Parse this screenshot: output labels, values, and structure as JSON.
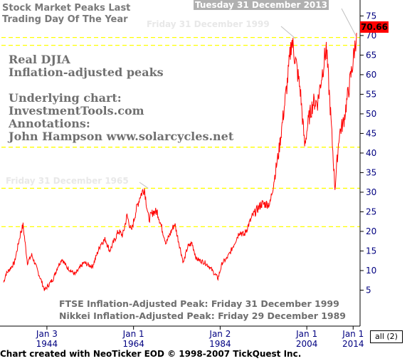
{
  "title_lines": [
    "Stock Market Peaks Last",
    "Trading Day Of The Year"
  ],
  "info_lines": [
    "Real DJIA",
    "Inflation-adjusted peaks",
    "",
    "Underlying chart:",
    "InvestmentTools.com",
    "Annotations:",
    "John Hampson  www.solarcycles.net"
  ],
  "annotations": {
    "peak_2013": "Tuesday 31 December 2013",
    "peak_1999": "Friday 31 December 1999",
    "peak_1965": "Friday 31 December 1965"
  },
  "bottom_notes": [
    "FTSE Inflation-Adjusted Peak: Friday 31 December 1999",
    "Nikkei Inflation-Adjusted Peak: Friday 29 December 1989"
  ],
  "last_price": "70.66",
  "all_button": "all (2)",
  "footer": "Chart created with NeoTicker EOD © 1998-2007 TickQuest Inc.",
  "colors": {
    "series": "#ff0000",
    "peak_lines": "#ffff00",
    "axis_text": "#000080",
    "label_bg": "#ff0000"
  },
  "chart_data": {
    "type": "line",
    "title": "Stock Market Peaks Last Trading Day Of The Year",
    "xlabel": "",
    "ylabel": "",
    "ylim": [
      0,
      78
    ],
    "y_ticks": [
      5,
      10,
      15,
      20,
      25,
      30,
      35,
      40,
      45,
      50,
      55,
      60,
      65,
      70,
      75
    ],
    "x_ticks": [
      {
        "label": "Jan 3",
        "year": "1944"
      },
      {
        "label": "Jan 1",
        "year": "1964"
      },
      {
        "label": "Jan 2",
        "year": "1984"
      },
      {
        "label": "Jan 1",
        "year": "2004"
      },
      {
        "label": "Jan 1",
        "year": "2014"
      }
    ],
    "horizontal_peak_lines": [
      21.2,
      31,
      41.5,
      67.5,
      69.5
    ],
    "series": [
      {
        "name": "Real DJIA",
        "x": [
          1932.5,
          1933,
          1935,
          1936.5,
          1937,
          1938,
          1939,
          1942,
          1944,
          1945,
          1946,
          1947,
          1949,
          1951,
          1953,
          1954,
          1955,
          1956,
          1957,
          1959,
          1960,
          1961,
          1962,
          1963,
          1964,
          1965,
          1966,
          1967,
          1968,
          1970,
          1972,
          1974,
          1975,
          1976,
          1977,
          1979,
          1980,
          1982,
          1983,
          1984,
          1985,
          1987,
          1988,
          1990,
          1992,
          1994,
          1996,
          1998,
          1999,
          2000,
          2001,
          2002,
          2003,
          2004,
          2005,
          2006,
          2007,
          2008,
          2009,
          2010,
          2011,
          2012,
          2013,
          2014
        ],
        "y": [
          7,
          9,
          12,
          20,
          21.5,
          12,
          14,
          5,
          8,
          11,
          13,
          11,
          9,
          12,
          11,
          14,
          17,
          18,
          15,
          20,
          19,
          24,
          20,
          25,
          29,
          31,
          23,
          25,
          25,
          17,
          22,
          12,
          16,
          17,
          13,
          12,
          11,
          8,
          12,
          13,
          15,
          20,
          19,
          24,
          27,
          27,
          40,
          58,
          69,
          63,
          56,
          42,
          49,
          53,
          53,
          60,
          67,
          50,
          31,
          45,
          48,
          55,
          62,
          70.66
        ]
      }
    ]
  }
}
